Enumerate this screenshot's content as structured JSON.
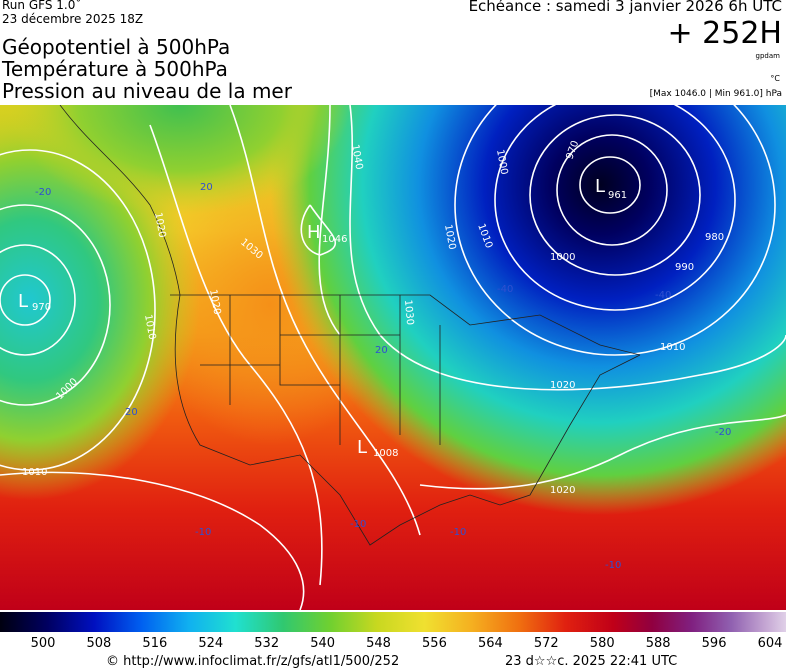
{
  "header": {
    "run": "Run GFS 1.0˚",
    "run_date": "23 décembre 2025 18Z",
    "lines": [
      "Géopotentiel à 500hPa",
      "Température à 500hPa",
      "Pression au niveau de la mer"
    ],
    "valid": "Echéance : samedi 3 janvier 2026 6h UTC",
    "lead": "+ 252H",
    "lead_unit": "gpdam",
    "temp_unit": "°C",
    "extremes": "[Max 1046.0 | Min 961.0] hPa"
  },
  "map": {
    "centers": [
      {
        "letter": "H",
        "value": "1046"
      },
      {
        "letter": "L",
        "value": "970"
      },
      {
        "letter": "L",
        "value": "961"
      },
      {
        "letter": "L",
        "value": "1008"
      }
    ],
    "labels": [
      "1040",
      "1020",
      "1030",
      "1020",
      "1010",
      "1000",
      "1010",
      "1000",
      "990",
      "980",
      "970",
      "1000",
      "1010",
      "1020",
      "1010",
      "1020",
      "1030",
      "1020",
      "-40",
      "-40",
      "-20",
      "-20",
      "-10",
      "-10",
      "-10",
      "-10",
      "20",
      "20",
      "20"
    ]
  },
  "colorbar": {
    "ticks": [
      500,
      508,
      516,
      524,
      532,
      540,
      548,
      556,
      564,
      572,
      580,
      588,
      596,
      604
    ]
  },
  "footer": {
    "source": "© http://www.infoclimat.fr/z/gfs/atl1/500/252",
    "stamp": "23 d☆☆c. 2025 22:41 UTC"
  }
}
